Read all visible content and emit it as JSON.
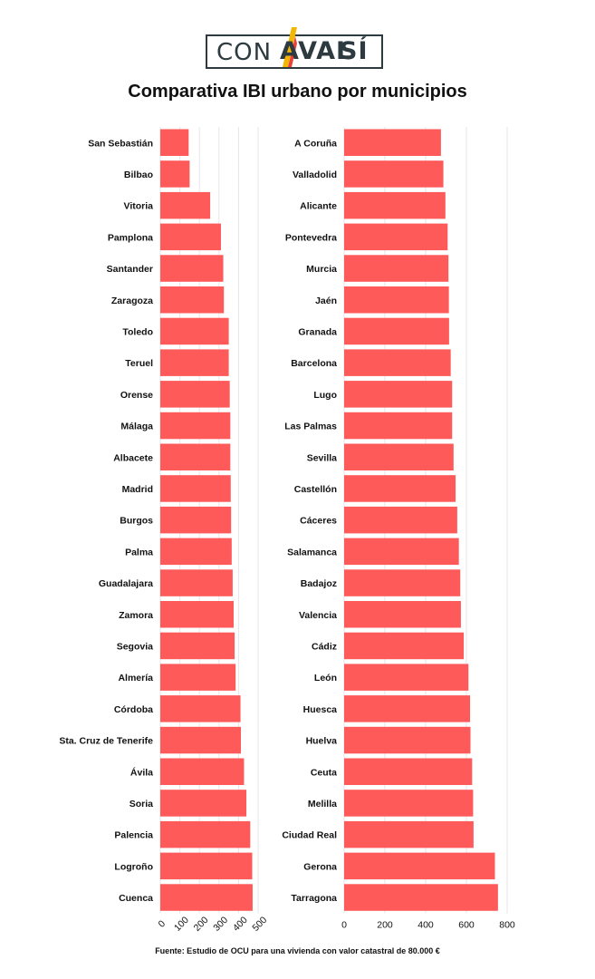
{
  "logo": {
    "con": "CON",
    "aval": "AVAL",
    "si": "SÍ"
  },
  "title": "Comparativa IBI urbano por municipios",
  "footnote": "Fuente: Estudio de OCU para una vivienda con valor catastral de 80.000 €",
  "colors": {
    "bar": "#ff5a5a",
    "grid": "#e6e6e6",
    "text": "#111111",
    "logo_dark": "#2d3a40",
    "logo_accent": "#e8423a"
  },
  "chart_data": [
    {
      "type": "bar",
      "orientation": "horizontal",
      "title": "",
      "xlabel": "",
      "ylabel": "",
      "xlim": [
        0,
        500
      ],
      "xticks": [
        0,
        100,
        200,
        300,
        400,
        500
      ],
      "grid": true,
      "categories": [
        "San Sebastián",
        "Bilbao",
        "Vitoria",
        "Pamplona",
        "Santander",
        "Zaragoza",
        "Toledo",
        "Teruel",
        "Orense",
        "Málaga",
        "Albacete",
        "Madrid",
        "Burgos",
        "Palma",
        "Guadalajara",
        "Zamora",
        "Segovia",
        "Almería",
        "Córdoba",
        "Sta. Cruz de Tenerife",
        "Ávila",
        "Soria",
        "Palencia",
        "Logroño",
        "Cuenca"
      ],
      "values": [
        145,
        150,
        255,
        310,
        322,
        325,
        350,
        350,
        355,
        358,
        358,
        360,
        362,
        365,
        370,
        375,
        380,
        385,
        410,
        412,
        428,
        440,
        460,
        470,
        472
      ]
    },
    {
      "type": "bar",
      "orientation": "horizontal",
      "title": "",
      "xlabel": "",
      "ylabel": "",
      "xlim": [
        0,
        800
      ],
      "xticks": [
        0,
        200,
        400,
        600,
        800
      ],
      "grid": true,
      "categories": [
        "A Coruña",
        "Valladolid",
        "Alicante",
        "Pontevedra",
        "Murcia",
        "Jaén",
        "Granada",
        "Barcelona",
        "Lugo",
        "Las Palmas",
        "Sevilla",
        "Castellón",
        "Cáceres",
        "Salamanca",
        "Badajoz",
        "Valencia",
        "Cádiz",
        "León",
        "Huesca",
        "Huelva",
        "Ceuta",
        "Melilla",
        "Ciudad Real",
        "Gerona",
        "Tarragona"
      ],
      "values": [
        475,
        487,
        497,
        508,
        512,
        514,
        515,
        523,
        530,
        530,
        537,
        547,
        555,
        563,
        570,
        573,
        587,
        610,
        618,
        620,
        628,
        633,
        635,
        740,
        755
      ]
    }
  ]
}
